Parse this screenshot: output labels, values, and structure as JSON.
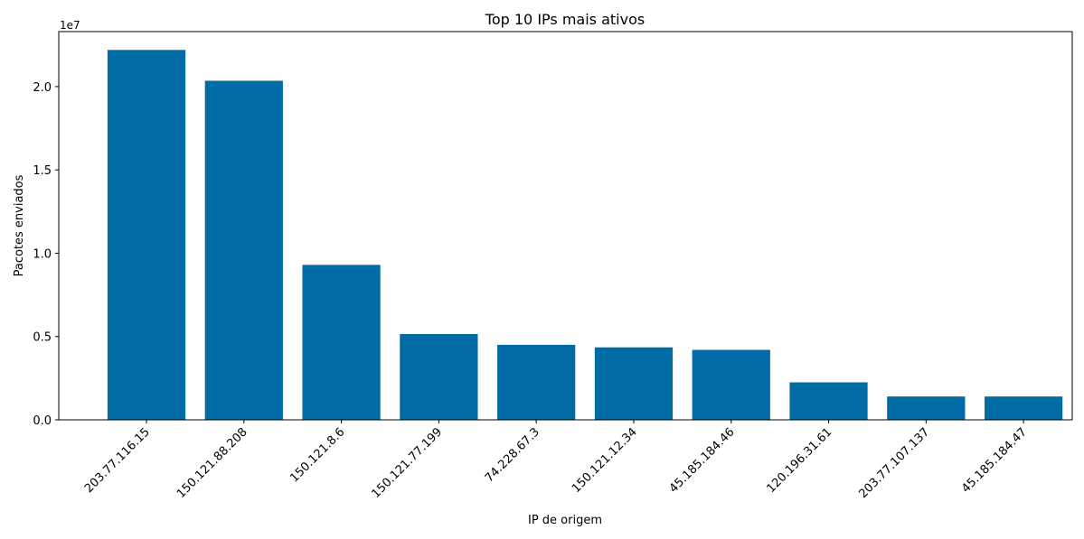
{
  "chart_data": {
    "type": "bar",
    "title": "Top 10 IPs mais ativos",
    "xlabel": "IP de origem",
    "ylabel": "Pacotes enviados",
    "y_offset_label": "1e7",
    "y_scale": 10000000,
    "ylim": [
      0,
      23300000
    ],
    "yticks": [
      0,
      5000000,
      10000000,
      15000000,
      20000000
    ],
    "ytick_labels": [
      "0.0",
      "0.5",
      "1.0",
      "1.5",
      "2.0"
    ],
    "grid": false,
    "bar_color": "#006BA4",
    "categories": [
      "203.77.116.15",
      "150.121.88.208",
      "150.121.8.6",
      "150.121.77.199",
      "74.228.67.3",
      "150.121.12.34",
      "45.185.184.46",
      "120.196.31.61",
      "203.77.107.137",
      "45.185.184.47"
    ],
    "values": [
      22200000,
      20350000,
      9300000,
      5150000,
      4500000,
      4350000,
      4200000,
      2250000,
      1400000,
      1400000
    ]
  }
}
